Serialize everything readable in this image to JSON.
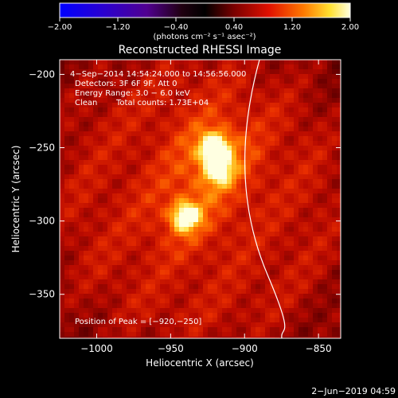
{
  "chart_data": {
    "type": "heatmap",
    "title": "Reconstructed RHESSI Image",
    "xlabel": "Heliocentric X (arcsec)",
    "ylabel": "Heliocentric Y (arcsec)",
    "xlim": [
      -1025,
      -835
    ],
    "ylim": [
      -380,
      -190
    ],
    "x_ticks": [
      -1000,
      -950,
      -900,
      -850
    ],
    "x_tick_labels": [
      "−1000",
      "−950",
      "−900",
      "−850"
    ],
    "y_ticks": [
      -200,
      -250,
      -300,
      -350
    ],
    "y_tick_labels": [
      "−200",
      "−250",
      "−300",
      "−350"
    ],
    "colorbar": {
      "range": [
        -2.0,
        2.0
      ],
      "ticks": [
        -2.0,
        -1.2,
        -0.4,
        0.4,
        1.2,
        2.0
      ],
      "tick_labels": [
        "−2.00",
        "−1.20",
        "−0.40",
        "0.40",
        "1.20",
        "2.00"
      ],
      "unit_label": "(photons cm⁻² s⁻¹ asec⁻²)"
    },
    "sources": [
      {
        "x": -920,
        "y": -250,
        "peak": 2.0
      },
      {
        "x": -918,
        "y": -265,
        "peak": 1.45
      },
      {
        "x": -940,
        "y": -297,
        "peak": 1.85
      }
    ],
    "peak_position": [
      -920,
      -250
    ],
    "limb": "white curve across the map (solar limb)",
    "grid": false
  },
  "annotations": {
    "time": "4−Sep−2014 14:54:24.000 to 14:56:56.000",
    "detectors": "Detectors: 3F 6F 9F, Att 0",
    "energy": "Energy Range: 3.0 − 6.0 keV",
    "clean": "Clean",
    "counts": "Total counts: 1.73E+04",
    "peak": "Position of Peak = [−920,−250]"
  },
  "footer": {
    "date": "2−Jun−2019 04:59"
  }
}
